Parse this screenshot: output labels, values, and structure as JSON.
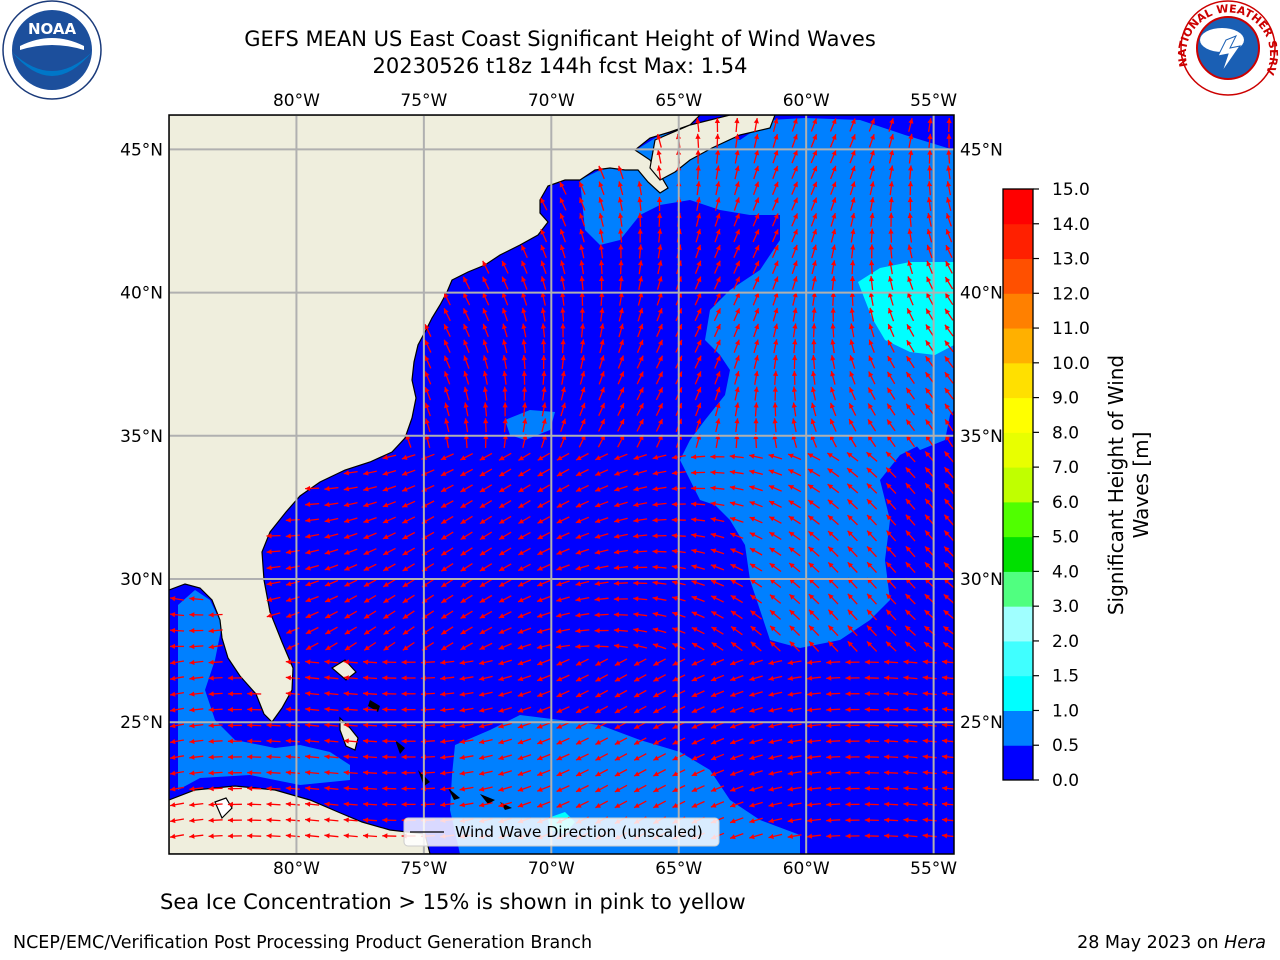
{
  "header": {
    "title_line1": "GEFS MEAN US East Coast Significant Height of Wind Waves",
    "title_line2": "20230526 t18z 144h fcst    Max: 1.54"
  },
  "logos": {
    "left": "NOAA",
    "right": "NATIONAL WEATHER SERVICE"
  },
  "map": {
    "extent": {
      "lon": [
        -85,
        -54.2
      ],
      "lat": [
        20.4,
        46.2
      ]
    },
    "lon_ticks": [
      -80,
      -75,
      -70,
      -65,
      -60,
      -55
    ],
    "lon_labels": [
      "80°W",
      "75°W",
      "70°W",
      "65°W",
      "60°W",
      "55°W"
    ],
    "lat_ticks": [
      25,
      30,
      35,
      40,
      45
    ],
    "lat_labels": [
      "25°N",
      "30°N",
      "35°N",
      "40°N",
      "45°N"
    ],
    "legend_label": "Wind Wave Direction (unscaled)",
    "colors": {
      "land": "#efeedd",
      "band_0_0_5": "#0000ff",
      "band_0_5_1_0": "#0080ff",
      "band_1_0_1_5": "#00ffff",
      "arrow": "#ff0000"
    }
  },
  "colorbar": {
    "label": "Significant Height of Wind Waves [m]",
    "tick_labels": [
      "0.0",
      "0.5",
      "1.0",
      "1.5",
      "2.0",
      "3.0",
      "4.0",
      "5.0",
      "6.0",
      "7.0",
      "8.0",
      "9.0",
      "10.0",
      "11.0",
      "12.0",
      "13.0",
      "14.0",
      "15.0"
    ],
    "colors": [
      "#0000ff",
      "#0080ff",
      "#00ffff",
      "#40ffff",
      "#a0ffff",
      "#50ff80",
      "#00e000",
      "#50ff00",
      "#c0ff00",
      "#e8ff00",
      "#ffff00",
      "#ffe000",
      "#ffb000",
      "#ff8000",
      "#ff5000",
      "#ff2000",
      "#ff0000"
    ]
  },
  "footer": {
    "note": "Sea Ice Concentration > 15% is shown in pink to yellow",
    "credit_left": "NCEP/EMC/Verification Post Processing Product Generation Branch",
    "credit_date": "28 May 2023 on ",
    "credit_host": "Hera"
  }
}
